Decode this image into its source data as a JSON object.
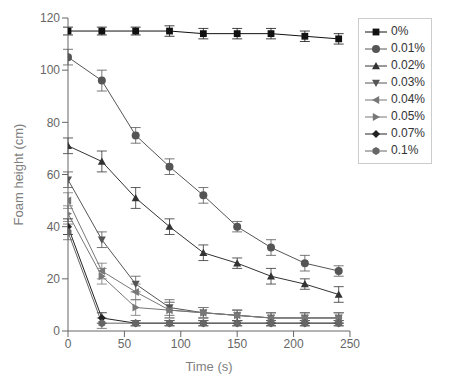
{
  "chart_data": {
    "type": "line",
    "xlabel": "Time (s)",
    "ylabel": "Foam height (cm)",
    "xlim": [
      0,
      250
    ],
    "ylim": [
      0,
      120
    ],
    "xticks": [
      0,
      50,
      100,
      150,
      200,
      250
    ],
    "yticks": [
      0,
      20,
      40,
      60,
      80,
      100,
      120
    ],
    "grid": false,
    "legend": "upper right",
    "x": [
      0,
      30,
      60,
      90,
      120,
      150,
      180,
      210,
      240
    ],
    "series": [
      {
        "name": "0%",
        "color": "#111111",
        "marker": "square",
        "values": [
          115,
          115,
          115,
          115,
          114,
          114,
          114,
          113,
          112
        ],
        "yerr": [
          1.5,
          1.5,
          1.5,
          2,
          2,
          2,
          2,
          2,
          2
        ]
      },
      {
        "name": "0.01%",
        "color": "#555555",
        "marker": "circle",
        "values": [
          105,
          96,
          75,
          63,
          52,
          40,
          32,
          26,
          23
        ],
        "yerr": [
          3,
          4,
          3,
          3,
          3,
          2,
          3,
          3,
          2
        ]
      },
      {
        "name": "0.02%",
        "color": "#333333",
        "marker": "triangle-up",
        "values": [
          71,
          65,
          51,
          40,
          30,
          26,
          21,
          18,
          14
        ],
        "yerr": [
          3,
          4,
          4,
          3,
          3,
          2,
          3,
          2,
          3
        ]
      },
      {
        "name": "0.03%",
        "color": "#555555",
        "marker": "triangle-down",
        "values": [
          58,
          35,
          18,
          9,
          7,
          6,
          5,
          5,
          5
        ],
        "yerr": [
          3,
          3,
          3,
          3,
          2,
          2,
          2,
          2,
          2
        ]
      },
      {
        "name": "0.04%",
        "color": "#777777",
        "marker": "triangle-left",
        "values": [
          50,
          23,
          15,
          8,
          7,
          6,
          5,
          5,
          5
        ],
        "yerr": [
          3,
          3,
          3,
          3,
          2,
          2,
          2,
          2,
          2
        ]
      },
      {
        "name": "0.05%",
        "color": "#777777",
        "marker": "triangle-right",
        "values": [
          45,
          21,
          9,
          8,
          7,
          6,
          5,
          5,
          5
        ],
        "yerr": [
          3,
          3,
          3,
          3,
          2,
          2,
          2,
          2,
          2
        ]
      },
      {
        "name": "0.07%",
        "color": "#222222",
        "marker": "diamond",
        "values": [
          40,
          5,
          3,
          3,
          3,
          3,
          3,
          3,
          3
        ],
        "yerr": [
          3,
          2,
          1,
          1,
          1,
          1,
          1,
          1,
          1
        ]
      },
      {
        "name": "0.1%",
        "color": "#666666",
        "marker": "hexagon",
        "values": [
          38,
          3,
          3,
          3,
          3,
          3,
          3,
          3,
          3
        ],
        "yerr": [
          3,
          2,
          1,
          1,
          1,
          1,
          1,
          1,
          1
        ]
      }
    ]
  }
}
